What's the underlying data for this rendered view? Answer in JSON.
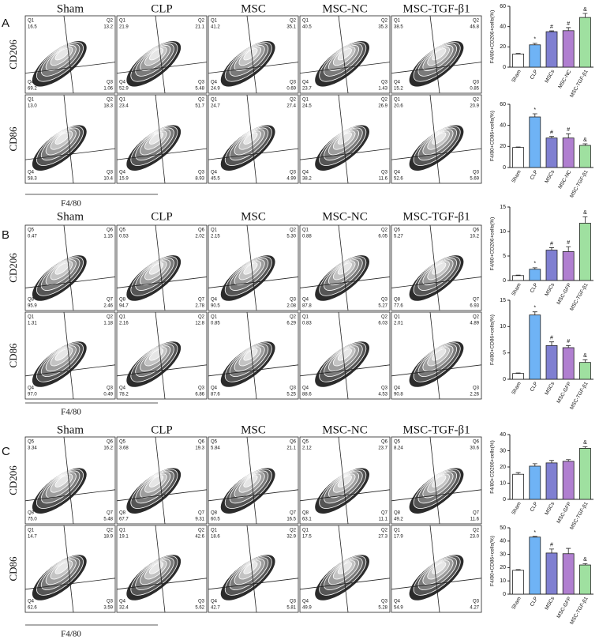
{
  "panels": [
    {
      "letter": "A",
      "columns": [
        "Sham",
        "CLP",
        "MSC",
        "MSC-NC",
        "MSC-TGF-β1"
      ],
      "x_label": "F4/80",
      "rows": [
        {
          "marker": "CD206",
          "plots": [
            [
              {
                "label": "Q1",
                "value": "16.5"
              },
              {
                "label": "Q2",
                "value": "13.2"
              },
              {
                "label": "Q3",
                "value": "1.06"
              },
              {
                "label": "Q4",
                "value": "69.2"
              }
            ],
            [
              {
                "label": "Q1",
                "value": "21.9"
              },
              {
                "label": "Q2",
                "value": "21.1"
              },
              {
                "label": "Q3",
                "value": "5.48"
              },
              {
                "label": "Q4",
                "value": "52.9"
              }
            ],
            [
              {
                "label": "Q1",
                "value": "41.2"
              },
              {
                "label": "Q2",
                "value": "35.1"
              },
              {
                "label": "Q3",
                "value": "0.69"
              },
              {
                "label": "Q4",
                "value": "24.9"
              }
            ],
            [
              {
                "label": "Q1",
                "value": "40.5"
              },
              {
                "label": "Q2",
                "value": "35.3"
              },
              {
                "label": "Q3",
                "value": "1.43"
              },
              {
                "label": "Q4",
                "value": "23.7"
              }
            ],
            [
              {
                "label": "Q1",
                "value": "38.5"
              },
              {
                "label": "Q2",
                "value": "46.8"
              },
              {
                "label": "Q3",
                "value": "0.85"
              },
              {
                "label": "Q4",
                "value": "15.2"
              }
            ]
          ]
        },
        {
          "marker": "CD86",
          "plots": [
            [
              {
                "label": "Q1",
                "value": "13.0"
              },
              {
                "label": "Q2",
                "value": "18.3"
              },
              {
                "label": "Q3",
                "value": "10.4"
              },
              {
                "label": "Q4",
                "value": "58.3"
              }
            ],
            [
              {
                "label": "Q1",
                "value": "23.4"
              },
              {
                "label": "Q2",
                "value": "51.7"
              },
              {
                "label": "Q3",
                "value": "8.93"
              },
              {
                "label": "Q4",
                "value": "15.9"
              }
            ],
            [
              {
                "label": "Q1",
                "value": "24.7"
              },
              {
                "label": "Q2",
                "value": "27.4"
              },
              {
                "label": "Q3",
                "value": "4.99"
              },
              {
                "label": "Q4",
                "value": "45.5"
              }
            ],
            [
              {
                "label": "Q1",
                "value": "24.5"
              },
              {
                "label": "Q2",
                "value": "26.9"
              },
              {
                "label": "Q3",
                "value": "11.6"
              },
              {
                "label": "Q4",
                "value": "38.2"
              }
            ],
            [
              {
                "label": "Q1",
                "value": "20.6"
              },
              {
                "label": "Q2",
                "value": "20.9"
              },
              {
                "label": "Q3",
                "value": "5.69"
              },
              {
                "label": "Q4",
                "value": "52.6"
              }
            ]
          ]
        }
      ]
    },
    {
      "letter": "B",
      "columns": [
        "Sham",
        "CLP",
        "MSC",
        "MSC-NC",
        "MSC-TGF-β1"
      ],
      "x_label": "F4/80",
      "rows": [
        {
          "marker": "CD206",
          "plots": [
            [
              {
                "label": "Q5",
                "value": "0.47"
              },
              {
                "label": "Q6",
                "value": "1.15"
              },
              {
                "label": "Q7",
                "value": "2.46"
              },
              {
                "label": "Q8",
                "value": "95.9"
              }
            ],
            [
              {
                "label": "Q5",
                "value": "0.53"
              },
              {
                "label": "Q6",
                "value": "2.02"
              },
              {
                "label": "Q7",
                "value": "2.78"
              },
              {
                "label": "Q8",
                "value": "94.7"
              }
            ],
            [
              {
                "label": "Q1",
                "value": "2.15"
              },
              {
                "label": "Q2",
                "value": "5.30"
              },
              {
                "label": "Q3",
                "value": "2.08"
              },
              {
                "label": "Q4",
                "value": "90.5"
              }
            ],
            [
              {
                "label": "Q1",
                "value": "0.88"
              },
              {
                "label": "Q2",
                "value": "6.05"
              },
              {
                "label": "Q3",
                "value": "5.27"
              },
              {
                "label": "Q4",
                "value": "87.8"
              }
            ],
            [
              {
                "label": "Q5",
                "value": "5.27"
              },
              {
                "label": "Q6",
                "value": "10.2"
              },
              {
                "label": "Q7",
                "value": "6.93"
              },
              {
                "label": "Q8",
                "value": "77.6"
              }
            ]
          ]
        },
        {
          "marker": "CD86",
          "plots": [
            [
              {
                "label": "Q1",
                "value": "1.31"
              },
              {
                "label": "Q2",
                "value": "1.18"
              },
              {
                "label": "Q3",
                "value": "0.49"
              },
              {
                "label": "Q4",
                "value": "97.0"
              }
            ],
            [
              {
                "label": "Q1",
                "value": "2.16"
              },
              {
                "label": "Q2",
                "value": "12.8"
              },
              {
                "label": "Q3",
                "value": "6.86"
              },
              {
                "label": "Q4",
                "value": "78.2"
              }
            ],
            [
              {
                "label": "Q1",
                "value": "0.85"
              },
              {
                "label": "Q2",
                "value": "6.29"
              },
              {
                "label": "Q3",
                "value": "5.25"
              },
              {
                "label": "Q4",
                "value": "87.6"
              }
            ],
            [
              {
                "label": "Q1",
                "value": "0.83"
              },
              {
                "label": "Q2",
                "value": "6.03"
              },
              {
                "label": "Q3",
                "value": "4.53"
              },
              {
                "label": "Q4",
                "value": "88.6"
              }
            ],
            [
              {
                "label": "Q1",
                "value": "2.01"
              },
              {
                "label": "Q2",
                "value": "4.89"
              },
              {
                "label": "Q3",
                "value": "2.26"
              },
              {
                "label": "Q4",
                "value": "90.8"
              }
            ]
          ]
        }
      ]
    },
    {
      "letter": "C",
      "columns": [
        "Sham",
        "CLP",
        "MSC",
        "MSC-NC",
        "MSC-TGF-β1"
      ],
      "x_label": "F4/80",
      "rows": [
        {
          "marker": "CD206",
          "plots": [
            [
              {
                "label": "Q5",
                "value": "3.34"
              },
              {
                "label": "Q6",
                "value": "16.2"
              },
              {
                "label": "Q7",
                "value": "5.48"
              },
              {
                "label": "Q8",
                "value": "75.0"
              }
            ],
            [
              {
                "label": "Q5",
                "value": "3.68"
              },
              {
                "label": "Q6",
                "value": "19.3"
              },
              {
                "label": "Q7",
                "value": "9.31"
              },
              {
                "label": "Q8",
                "value": "67.7"
              }
            ],
            [
              {
                "label": "Q5",
                "value": "5.84"
              },
              {
                "label": "Q6",
                "value": "21.1"
              },
              {
                "label": "Q7",
                "value": "16.5"
              },
              {
                "label": "Q8",
                "value": "60.5"
              }
            ],
            [
              {
                "label": "Q5",
                "value": "2.12"
              },
              {
                "label": "Q6",
                "value": "23.7"
              },
              {
                "label": "Q7",
                "value": "11.1"
              },
              {
                "label": "Q8",
                "value": "63.1"
              }
            ],
            [
              {
                "label": "Q5",
                "value": "8.24"
              },
              {
                "label": "Q6",
                "value": "30.6"
              },
              {
                "label": "Q7",
                "value": "11.6"
              },
              {
                "label": "Q8",
                "value": "49.2"
              }
            ]
          ]
        },
        {
          "marker": "CD86",
          "plots": [
            [
              {
                "label": "Q1",
                "value": "14.7"
              },
              {
                "label": "Q2",
                "value": "18.9"
              },
              {
                "label": "Q3",
                "value": "3.59"
              },
              {
                "label": "Q4",
                "value": "62.6"
              }
            ],
            [
              {
                "label": "Q1",
                "value": "19.1"
              },
              {
                "label": "Q2",
                "value": "42.6"
              },
              {
                "label": "Q3",
                "value": "5.62"
              },
              {
                "label": "Q4",
                "value": "32.4"
              }
            ],
            [
              {
                "label": "Q1",
                "value": "18.6"
              },
              {
                "label": "Q2",
                "value": "32.9"
              },
              {
                "label": "Q3",
                "value": "5.81"
              },
              {
                "label": "Q4",
                "value": "42.7"
              }
            ],
            [
              {
                "label": "Q1",
                "value": "17.5"
              },
              {
                "label": "Q2",
                "value": "27.3"
              },
              {
                "label": "Q3",
                "value": "5.28"
              },
              {
                "label": "Q4",
                "value": "49.9"
              }
            ],
            [
              {
                "label": "Q1",
                "value": "17.9"
              },
              {
                "label": "Q2",
                "value": "23.0"
              },
              {
                "label": "Q3",
                "value": "4.27"
              },
              {
                "label": "Q4",
                "value": "54.9"
              }
            ]
          ]
        }
      ]
    }
  ],
  "chart_data": [
    {
      "type": "bar",
      "y_label": "F4/80+CD206+cells(%)",
      "categories": [
        "Sham",
        "CLP",
        "MSCs",
        "MSC-NC",
        "MSC-TGF-β1"
      ],
      "values": [
        13,
        22,
        35,
        36,
        49
      ],
      "errors": [
        0.5,
        1.5,
        0.8,
        3,
        4
      ],
      "annotations": [
        null,
        "*",
        "#",
        "#",
        "&"
      ],
      "colors": [
        "#ffffff",
        "#6fb3f5",
        "#7f7fd1",
        "#b07fd0",
        "#9fe0a0"
      ],
      "ylim": [
        0,
        60
      ],
      "yticks": [
        0,
        20,
        40,
        60
      ]
    },
    {
      "type": "bar",
      "y_label": "F4/80+CD86+cells(%)",
      "categories": [
        "Sham",
        "CLP",
        "MSCs",
        "MSC-NC",
        "MSC-TGF-β1"
      ],
      "values": [
        19,
        48,
        28,
        28,
        21
      ],
      "errors": [
        0.5,
        3,
        1.5,
        4,
        1.5
      ],
      "annotations": [
        null,
        "*",
        "#",
        "#",
        "&"
      ],
      "colors": [
        "#ffffff",
        "#6fb3f5",
        "#7f7fd1",
        "#b07fd0",
        "#9fe0a0"
      ],
      "ylim": [
        0,
        60
      ],
      "yticks": [
        0,
        20,
        40,
        60
      ]
    },
    {
      "type": "bar",
      "y_label": "F4/80+CD206+cells(%)",
      "categories": [
        "Sham",
        "CLP",
        "MSCs",
        "MSC-GFP",
        "MSC-TGF-β1"
      ],
      "values": [
        1,
        2.3,
        6.2,
        5.9,
        11.7
      ],
      "errors": [
        0.1,
        0.3,
        0.5,
        1,
        1.3
      ],
      "annotations": [
        null,
        "*",
        "#",
        "#",
        "&"
      ],
      "colors": [
        "#ffffff",
        "#6fb3f5",
        "#7f7fd1",
        "#b07fd0",
        "#9fe0a0"
      ],
      "ylim": [
        0,
        15
      ],
      "yticks": [
        0,
        5,
        10,
        15
      ]
    },
    {
      "type": "bar",
      "y_label": "F4/80+CD86+cells(%)",
      "categories": [
        "Sham",
        "CLP",
        "MSCs",
        "MSC-GFP",
        "MSC-TGF-β1"
      ],
      "values": [
        1.1,
        12.2,
        6.4,
        6,
        3.2
      ],
      "errors": [
        0.1,
        0.6,
        0.7,
        0.4,
        0.5
      ],
      "annotations": [
        null,
        "*",
        "#",
        "#",
        "&"
      ],
      "colors": [
        "#ffffff",
        "#6fb3f5",
        "#7f7fd1",
        "#b07fd0",
        "#9fe0a0"
      ],
      "ylim": [
        0,
        15
      ],
      "yticks": [
        0,
        5,
        10,
        15
      ]
    },
    {
      "type": "bar",
      "y_label": "F4/80+CD206+cells(%)",
      "categories": [
        "Sham",
        "CLP",
        "MSCs",
        "MSC-GFP",
        "MSC-TGF-β1"
      ],
      "values": [
        15.5,
        20.5,
        22.5,
        23.5,
        31.5
      ],
      "errors": [
        1,
        1.5,
        1.5,
        1,
        1
      ],
      "annotations": [
        null,
        null,
        null,
        null,
        "&"
      ],
      "colors": [
        "#ffffff",
        "#6fb3f5",
        "#7f7fd1",
        "#b07fd0",
        "#9fe0a0"
      ],
      "ylim": [
        0,
        40
      ],
      "yticks": [
        0,
        10,
        20,
        30,
        40
      ]
    },
    {
      "type": "bar",
      "y_label": "F4/80+CD86+cells(%)",
      "categories": [
        "Sham",
        "CLP",
        "MSCs",
        "MSC-GFP",
        "MSC-TGF-β1"
      ],
      "values": [
        18,
        43,
        31,
        30.5,
        22
      ],
      "errors": [
        0.5,
        0.5,
        3,
        4,
        1
      ],
      "annotations": [
        null,
        "*",
        "#",
        null,
        "&"
      ],
      "colors": [
        "#ffffff",
        "#6fb3f5",
        "#7f7fd1",
        "#b07fd0",
        "#9fe0a0"
      ],
      "ylim": [
        0,
        50
      ],
      "yticks": [
        0,
        10,
        20,
        30,
        40,
        50
      ]
    }
  ]
}
